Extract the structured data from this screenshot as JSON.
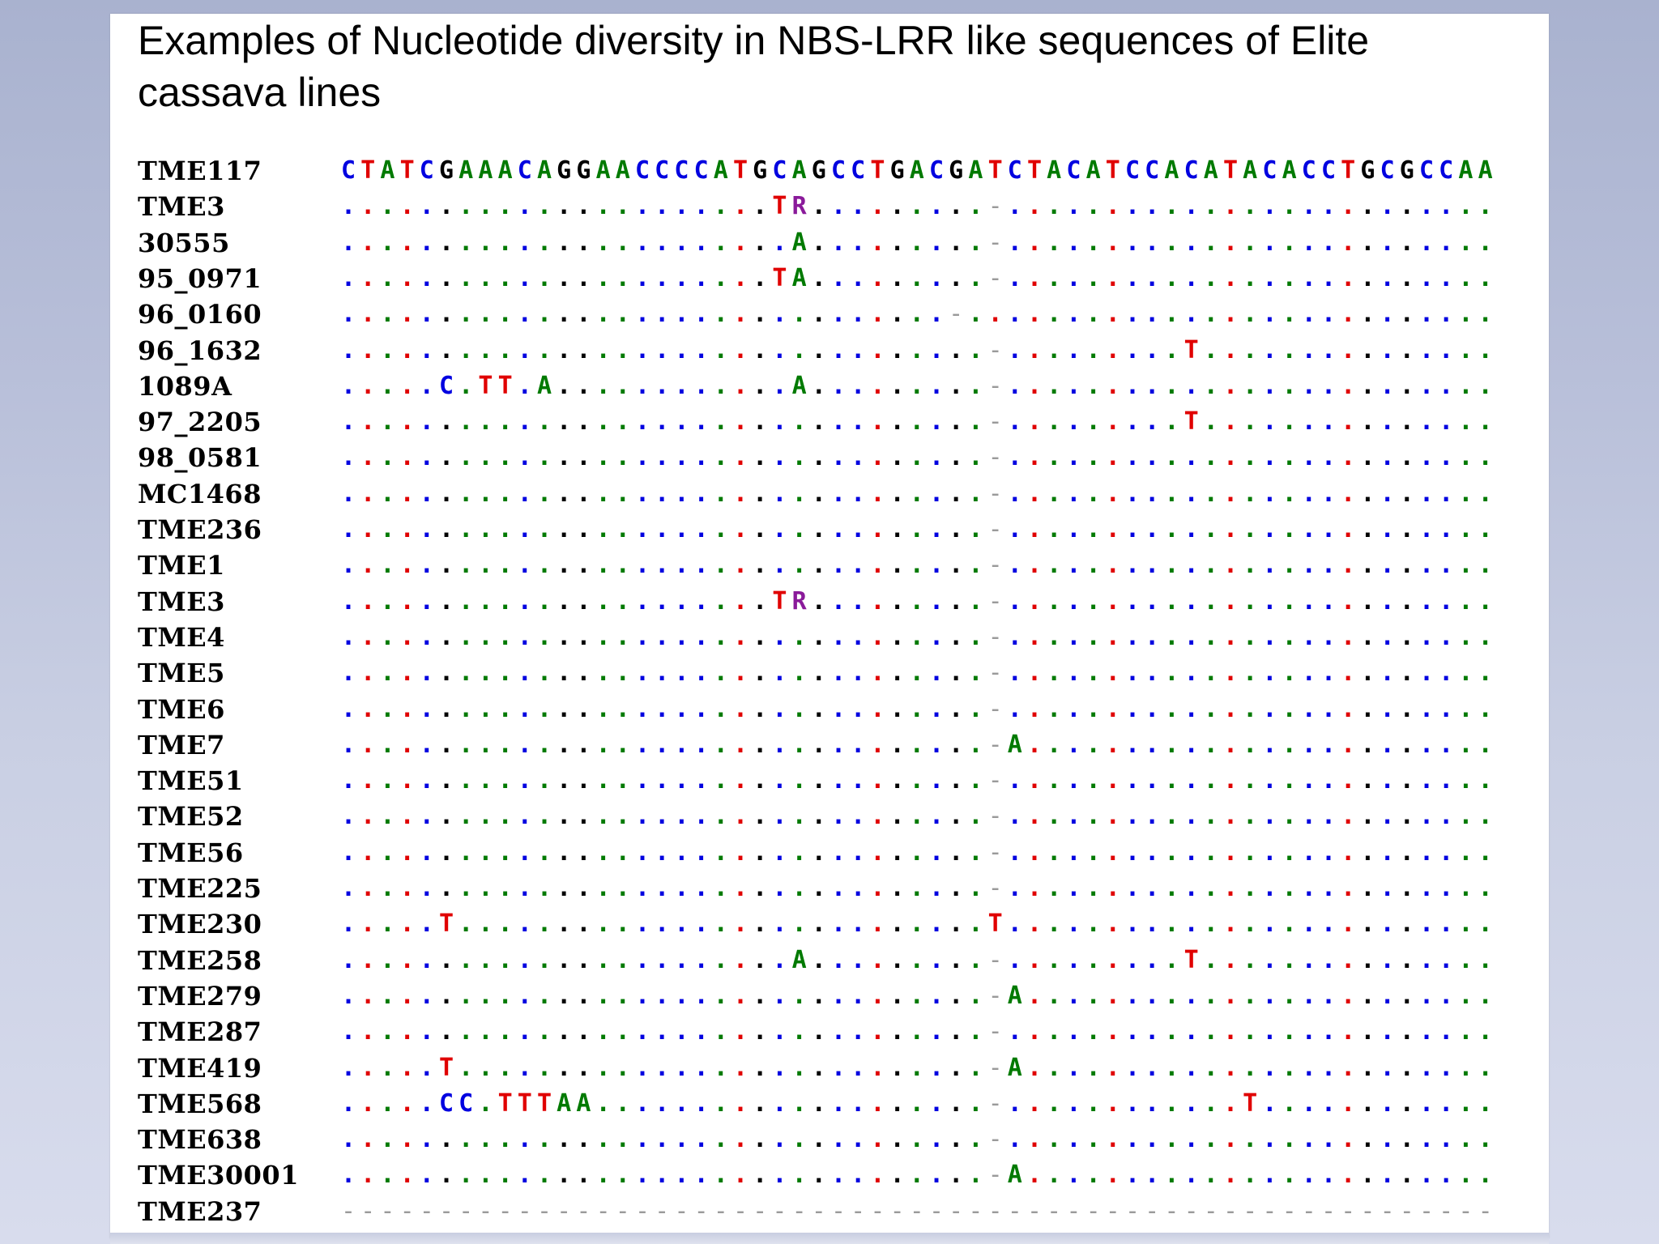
{
  "slide": {
    "title": "Examples of Nucleotide diversity in NBS-LRR like sequences of Elite cassava lines"
  },
  "alignment": {
    "reference": "CTATCGAAACAGGAACCCCATGCAGCCTGACGATCTACATCCACATACACCTGCGCCAA",
    "colors": {
      "A": "#007a00",
      "C": "#0000e0",
      "G": "#000000",
      "T": "#e00000",
      "R": "#8a1a9a",
      "gap": "#9a9a9a"
    },
    "rows": [
      {
        "name": "TME117",
        "seq": "CTATCGAAACAGGAACCCCATGCAGCCTGACGATCTACATCCACATACACCTGCGCCAA"
      },
      {
        "name": "TME3",
        "seq": "......................TR.........-........................."
      },
      {
        "name": "30555",
        "seq": ".......................A.........-........................."
      },
      {
        "name": "95_0971",
        "seq": "......................TA.........-........................."
      },
      {
        "name": "96_0160",
        "seq": "...............................-..........................."
      },
      {
        "name": "96_1632",
        "seq": ".................................-.........T..............."
      },
      {
        "name": "1089A",
        "seq": ".....C.TT.A............A.........-........................."
      },
      {
        "name": "97_2205",
        "seq": ".................................-.........T..............."
      },
      {
        "name": "98_0581",
        "seq": ".................................-........................."
      },
      {
        "name": "MC1468",
        "seq": ".................................-........................."
      },
      {
        "name": "TME236",
        "seq": ".................................-........................."
      },
      {
        "name": "TME1",
        "seq": ".................................-........................."
      },
      {
        "name": "TME3",
        "seq": "......................TR.........-........................."
      },
      {
        "name": "TME4",
        "seq": ".................................-........................."
      },
      {
        "name": "TME5",
        "seq": ".................................-........................."
      },
      {
        "name": "TME6",
        "seq": ".................................-........................."
      },
      {
        "name": "TME7",
        "seq": ".................................-A........................"
      },
      {
        "name": "TME51",
        "seq": ".................................-........................."
      },
      {
        "name": "TME52",
        "seq": ".................................-........................."
      },
      {
        "name": "TME56",
        "seq": ".................................-........................."
      },
      {
        "name": "TME225",
        "seq": ".................................-........................."
      },
      {
        "name": "TME230",
        "seq": ".....T...........................T........................."
      },
      {
        "name": "TME258",
        "seq": ".......................A.........-.........T..............."
      },
      {
        "name": "TME279",
        "seq": ".................................-A........................"
      },
      {
        "name": "TME287",
        "seq": ".................................-........................."
      },
      {
        "name": "TME419",
        "seq": ".....T...........................-A........................"
      },
      {
        "name": "TME568",
        "seq": ".....CC.TTTAA....................-............T............"
      },
      {
        "name": "TME638",
        "seq": ".................................-........................."
      },
      {
        "name": "TME30001",
        "seq": ".................................-A........................"
      },
      {
        "name": "TME237",
        "seq": "-----------------------------------------------------------"
      }
    ]
  }
}
